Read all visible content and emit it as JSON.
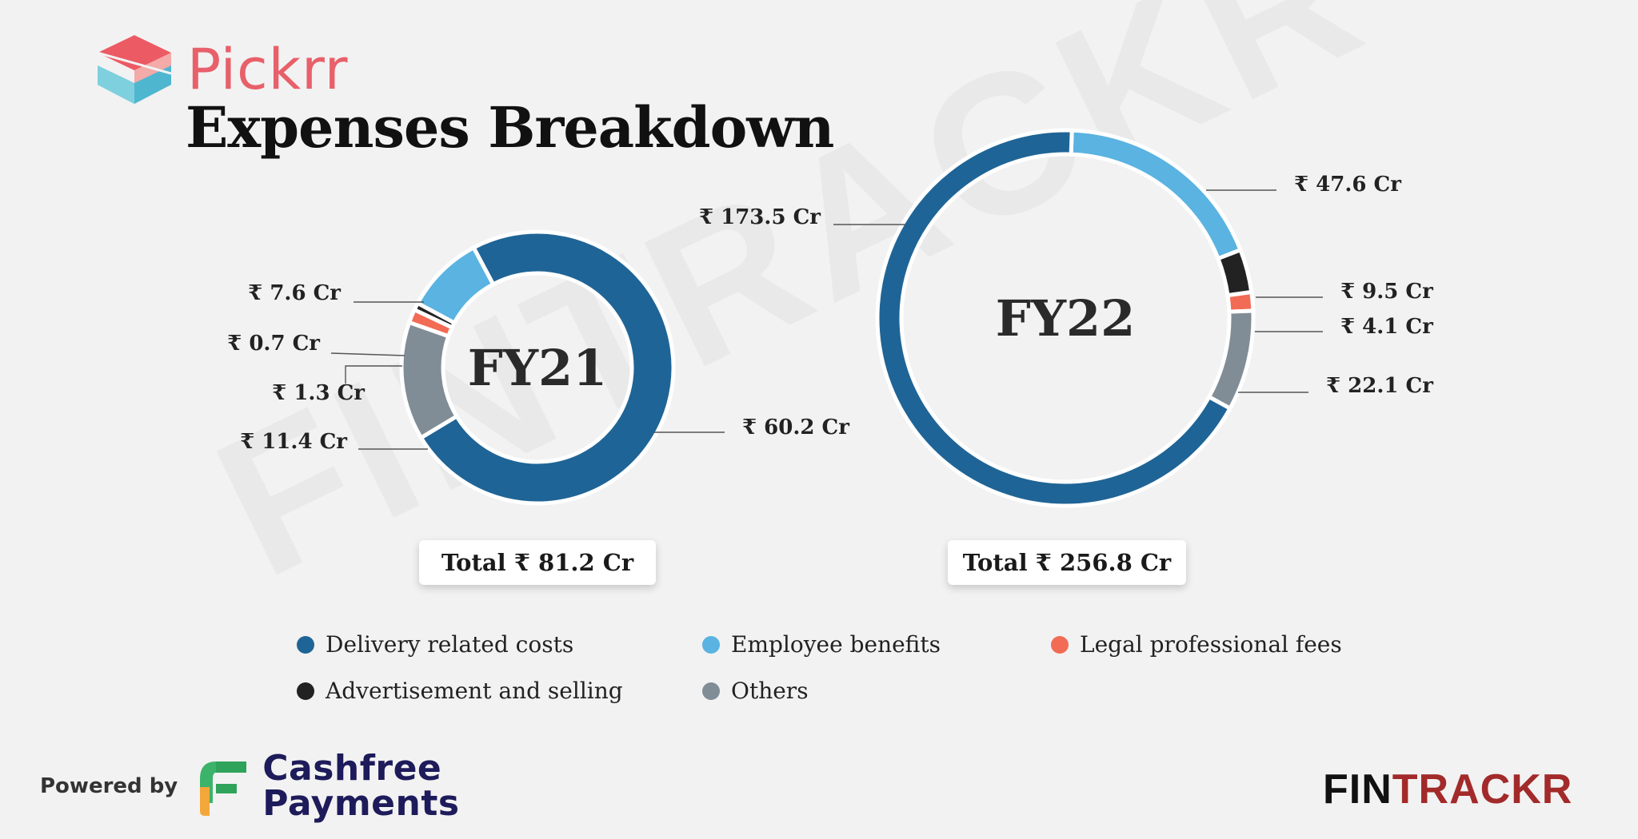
{
  "header": {
    "brand_name": "Pickrr",
    "title": "Expenses Breakdown"
  },
  "watermark": "FINTRACKR",
  "colors": {
    "delivery": "#1f6496",
    "employee": "#5ab3e1",
    "advertisement": "#222222",
    "legal": "#f26b55",
    "others": "#808d96"
  },
  "chart_data": {
    "type": "pie",
    "unit": "₹ Cr",
    "charts": [
      {
        "name": "FY21",
        "total_label": "Total ₹ 81.2 Cr",
        "slices": [
          {
            "category": "Delivery related costs",
            "key": "delivery",
            "value": 60.2,
            "label": "₹ 60.2 Cr"
          },
          {
            "category": "Others",
            "key": "others",
            "value": 11.4,
            "label": "₹ 11.4 Cr"
          },
          {
            "category": "Legal professional fees",
            "key": "legal",
            "value": 1.3,
            "label": "₹ 1.3 Cr"
          },
          {
            "category": "Advertisement and selling",
            "key": "advertisement",
            "value": 0.7,
            "label": "₹ 0.7 Cr"
          },
          {
            "category": "Employee benefits",
            "key": "employee",
            "value": 7.6,
            "label": "₹ 7.6 Cr"
          }
        ]
      },
      {
        "name": "FY22",
        "total_label": "Total ₹ 256.8 Cr",
        "slices": [
          {
            "category": "Employee benefits",
            "key": "employee",
            "value": 47.6,
            "label": "₹ 47.6 Cr"
          },
          {
            "category": "Advertisement and selling",
            "key": "advertisement",
            "value": 9.5,
            "label": "₹ 9.5 Cr"
          },
          {
            "category": "Legal professional fees",
            "key": "legal",
            "value": 4.1,
            "label": "₹ 4.1 Cr"
          },
          {
            "category": "Others",
            "key": "others",
            "value": 22.1,
            "label": "₹ 22.1 Cr"
          },
          {
            "category": "Delivery related costs",
            "key": "delivery",
            "value": 173.5,
            "label": "₹ 173.5 Cr"
          }
        ]
      }
    ],
    "legend": [
      {
        "label": "Delivery related costs",
        "key": "delivery"
      },
      {
        "label": "Employee benefits",
        "key": "employee"
      },
      {
        "label": "Legal professional fees",
        "key": "legal"
      },
      {
        "label": "Advertisement and selling",
        "key": "advertisement"
      },
      {
        "label": "Others",
        "key": "others"
      }
    ]
  },
  "footer": {
    "powered_by": "Powered by",
    "partner_line1": "Cashfree",
    "partner_line2": "Payments",
    "brand_left": "FIN",
    "brand_right": "TRACKR"
  }
}
